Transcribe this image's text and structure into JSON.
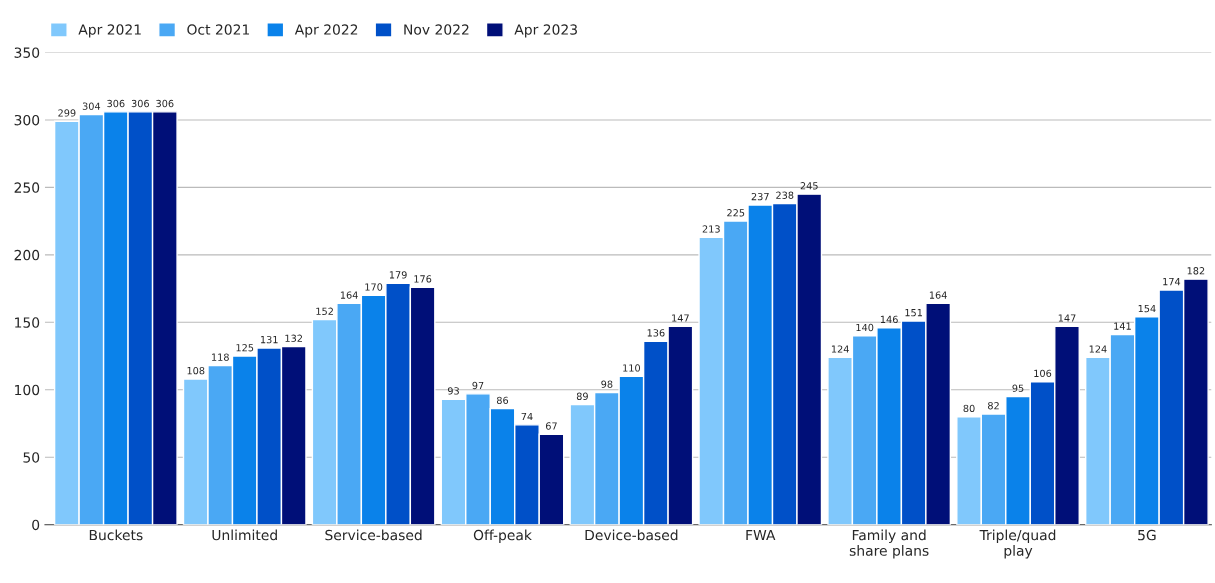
{
  "chart_data": {
    "type": "bar",
    "categories": [
      "Buckets",
      "Unlimited",
      "Service-based",
      "Off-peak",
      "Device-based",
      "FWA",
      "Family and share plans",
      "Triple/quad play",
      "5G"
    ],
    "series": [
      {
        "name": "Apr 2021",
        "color": "#80c8fc",
        "values": [
          299,
          108,
          152,
          93,
          89,
          213,
          124,
          80,
          124
        ]
      },
      {
        "name": "Oct 2021",
        "color": "#4aa8f4",
        "values": [
          304,
          118,
          164,
          97,
          98,
          225,
          140,
          82,
          141
        ]
      },
      {
        "name": "Apr 2022",
        "color": "#0a82ea",
        "values": [
          306,
          125,
          170,
          86,
          110,
          237,
          146,
          95,
          154
        ]
      },
      {
        "name": "Nov 2022",
        "color": "#0050c8",
        "values": [
          306,
          131,
          179,
          74,
          136,
          238,
          151,
          106,
          174
        ]
      },
      {
        "name": "Apr 2023",
        "color": "#000f78",
        "values": [
          306,
          132,
          176,
          67,
          147,
          245,
          164,
          147,
          182
        ]
      }
    ],
    "ylim": [
      0,
      350
    ],
    "yticks": [
      0,
      50,
      100,
      150,
      200,
      250,
      300,
      350
    ],
    "grid": "y",
    "legend": "top left",
    "data_labels": true
  }
}
